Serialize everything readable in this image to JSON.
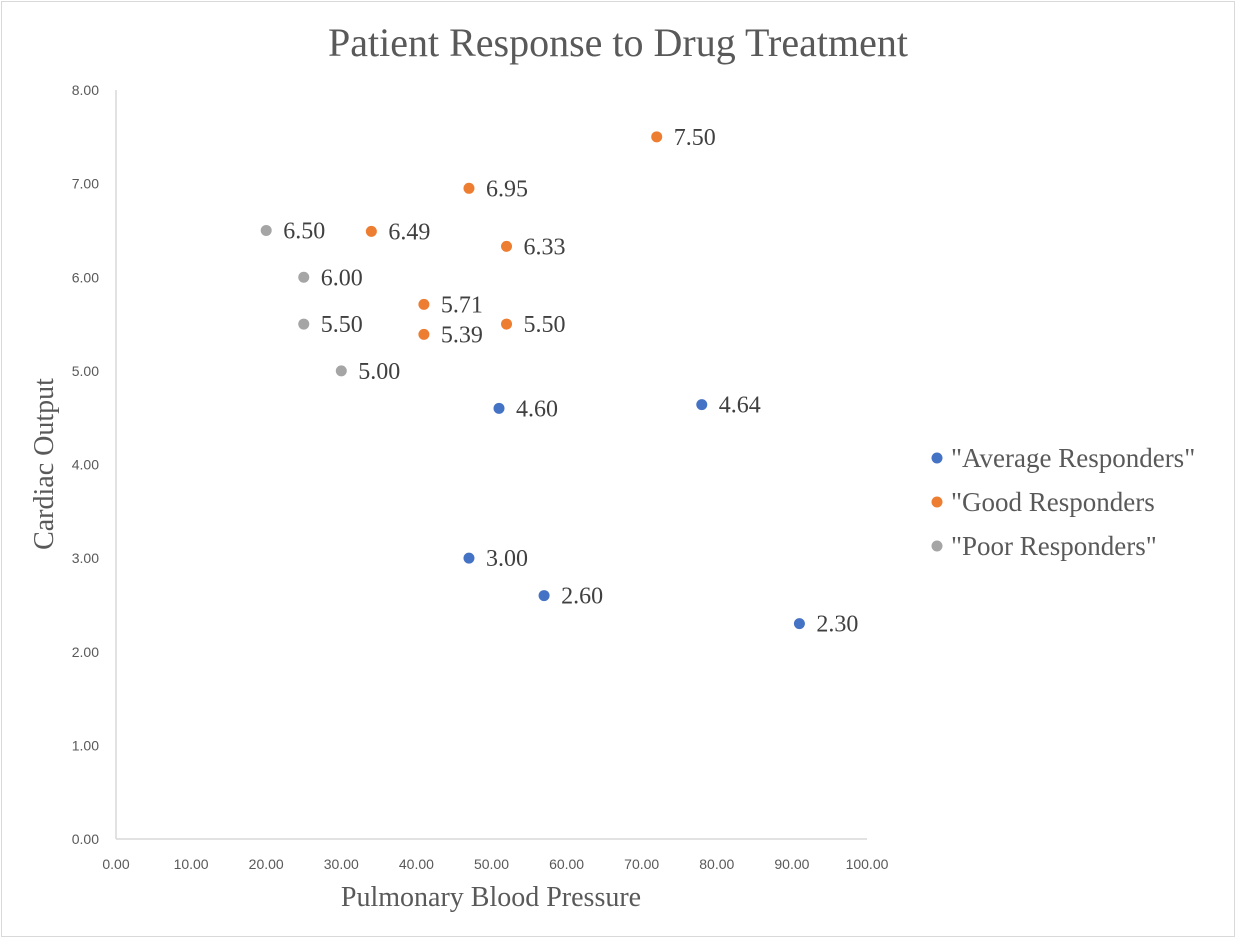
{
  "chart_data": {
    "type": "scatter",
    "title": "Patient Response to Drug Treatment",
    "xlabel": "Pulmonary Blood Pressure",
    "ylabel": "Cardiac Output",
    "xlim": [
      0,
      100
    ],
    "ylim": [
      0,
      8
    ],
    "x_ticks": [
      "0.00",
      "10.00",
      "20.00",
      "30.00",
      "40.00",
      "50.00",
      "60.00",
      "70.00",
      "80.00",
      "90.00",
      "100.00"
    ],
    "y_ticks": [
      "0.00",
      "1.00",
      "2.00",
      "3.00",
      "4.00",
      "5.00",
      "6.00",
      "7.00",
      "8.00"
    ],
    "grid": false,
    "legend_position": "right",
    "series": [
      {
        "name": "\"Average Responders\"",
        "color": "#4472c4",
        "points": [
          {
            "x": 51,
            "y": 4.6,
            "label": "4.60"
          },
          {
            "x": 78,
            "y": 4.64,
            "label": "4.64"
          },
          {
            "x": 47,
            "y": 3.0,
            "label": "3.00"
          },
          {
            "x": 57,
            "y": 2.6,
            "label": "2.60"
          },
          {
            "x": 91,
            "y": 2.3,
            "label": "2.30"
          }
        ]
      },
      {
        "name": "\"Good Responders",
        "color": "#ed7d31",
        "points": [
          {
            "x": 72,
            "y": 7.5,
            "label": "7.50"
          },
          {
            "x": 47,
            "y": 6.95,
            "label": "6.95"
          },
          {
            "x": 34,
            "y": 6.49,
            "label": "6.49"
          },
          {
            "x": 52,
            "y": 6.33,
            "label": "6.33"
          },
          {
            "x": 41,
            "y": 5.71,
            "label": "5.71"
          },
          {
            "x": 41,
            "y": 5.39,
            "label": "5.39"
          },
          {
            "x": 52,
            "y": 5.5,
            "label": "5.50"
          }
        ]
      },
      {
        "name": "\"Poor Responders\"",
        "color": "#a5a5a5",
        "points": [
          {
            "x": 20,
            "y": 6.5,
            "label": "6.50"
          },
          {
            "x": 25,
            "y": 6.0,
            "label": "6.00"
          },
          {
            "x": 25,
            "y": 5.5,
            "label": "5.50"
          },
          {
            "x": 30,
            "y": 5.0,
            "label": "5.00"
          }
        ]
      }
    ]
  }
}
